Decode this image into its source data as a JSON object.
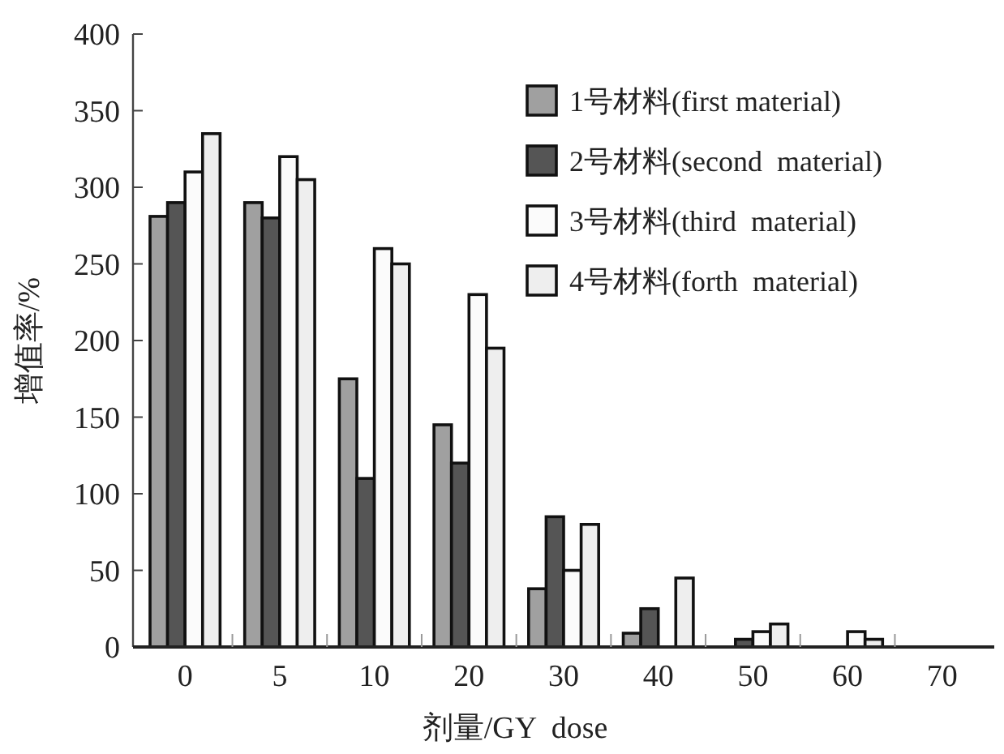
{
  "chart_data": {
    "type": "bar",
    "xlabel": "剂量/GY  dose",
    "ylabel": "增值率/%",
    "categories": [
      "0",
      "5",
      "10",
      "20",
      "30",
      "40",
      "50",
      "60",
      "70"
    ],
    "series": [
      {
        "name": "1号材料(first material)",
        "color": "#a0a0a0",
        "values": [
          281,
          290,
          175,
          145,
          38,
          9,
          0,
          0,
          0
        ]
      },
      {
        "name": "2号材料(second  material)",
        "color": "#555555",
        "values": [
          290,
          280,
          110,
          120,
          85,
          25,
          5,
          0,
          0
        ]
      },
      {
        "name": "3号材料(third  material)",
        "color": "#fbfbfb",
        "values": [
          310,
          320,
          260,
          230,
          50,
          0,
          10,
          10,
          0
        ]
      },
      {
        "name": "4号材料(forth  material)",
        "color": "#eeeeee",
        "values": [
          335,
          305,
          250,
          195,
          80,
          45,
          15,
          5,
          0
        ]
      }
    ],
    "ylim": [
      0,
      400
    ],
    "yticks": [
      0,
      50,
      100,
      150,
      200,
      250,
      300,
      350,
      400
    ],
    "legend": "top right"
  }
}
